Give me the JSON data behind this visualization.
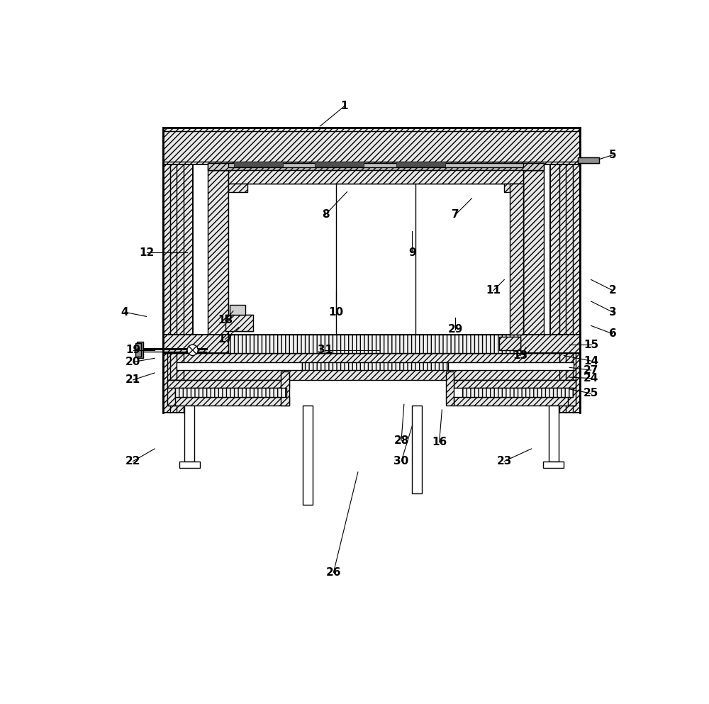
{
  "bg_color": "#ffffff",
  "lc": "#000000",
  "hatch_fc": "#e8e8e8",
  "dark_fc": "#606060",
  "gray_fc": "#b0b0b0",
  "label_configs": [
    [
      1,
      0.465,
      0.96,
      0.42,
      0.923
    ],
    [
      2,
      0.96,
      0.62,
      0.92,
      0.64
    ],
    [
      3,
      0.96,
      0.58,
      0.92,
      0.6
    ],
    [
      4,
      0.06,
      0.58,
      0.1,
      0.572
    ],
    [
      5,
      0.96,
      0.87,
      0.935,
      0.862
    ],
    [
      6,
      0.96,
      0.54,
      0.92,
      0.555
    ],
    [
      7,
      0.67,
      0.76,
      0.7,
      0.79
    ],
    [
      8,
      0.43,
      0.76,
      0.47,
      0.802
    ],
    [
      9,
      0.59,
      0.69,
      0.59,
      0.73
    ],
    [
      10,
      0.45,
      0.58,
      0.45,
      0.62
    ],
    [
      11,
      0.74,
      0.62,
      0.76,
      0.64
    ],
    [
      12,
      0.1,
      0.69,
      0.175,
      0.69
    ],
    [
      13,
      0.79,
      0.5,
      0.8,
      0.515
    ],
    [
      14,
      0.92,
      0.49,
      0.87,
      0.5
    ],
    [
      15,
      0.92,
      0.52,
      0.88,
      0.52
    ],
    [
      16,
      0.64,
      0.34,
      0.645,
      0.4
    ],
    [
      17,
      0.245,
      0.53,
      0.27,
      0.552
    ],
    [
      18,
      0.245,
      0.565,
      0.26,
      0.582
    ],
    [
      19,
      0.075,
      0.51,
      0.115,
      0.51
    ],
    [
      20,
      0.075,
      0.488,
      0.115,
      0.495
    ],
    [
      21,
      0.075,
      0.455,
      0.115,
      0.468
    ],
    [
      22,
      0.075,
      0.305,
      0.115,
      0.328
    ],
    [
      23,
      0.76,
      0.305,
      0.81,
      0.328
    ],
    [
      24,
      0.92,
      0.458,
      0.88,
      0.46
    ],
    [
      25,
      0.92,
      0.43,
      0.88,
      0.438
    ],
    [
      26,
      0.445,
      0.1,
      0.49,
      0.285
    ],
    [
      27,
      0.92,
      0.473,
      0.88,
      0.478
    ],
    [
      28,
      0.57,
      0.343,
      0.575,
      0.41
    ],
    [
      29,
      0.67,
      0.548,
      0.67,
      0.57
    ],
    [
      30,
      0.57,
      0.305,
      0.59,
      0.37
    ],
    [
      31,
      0.43,
      0.51,
      0.53,
      0.51
    ]
  ]
}
